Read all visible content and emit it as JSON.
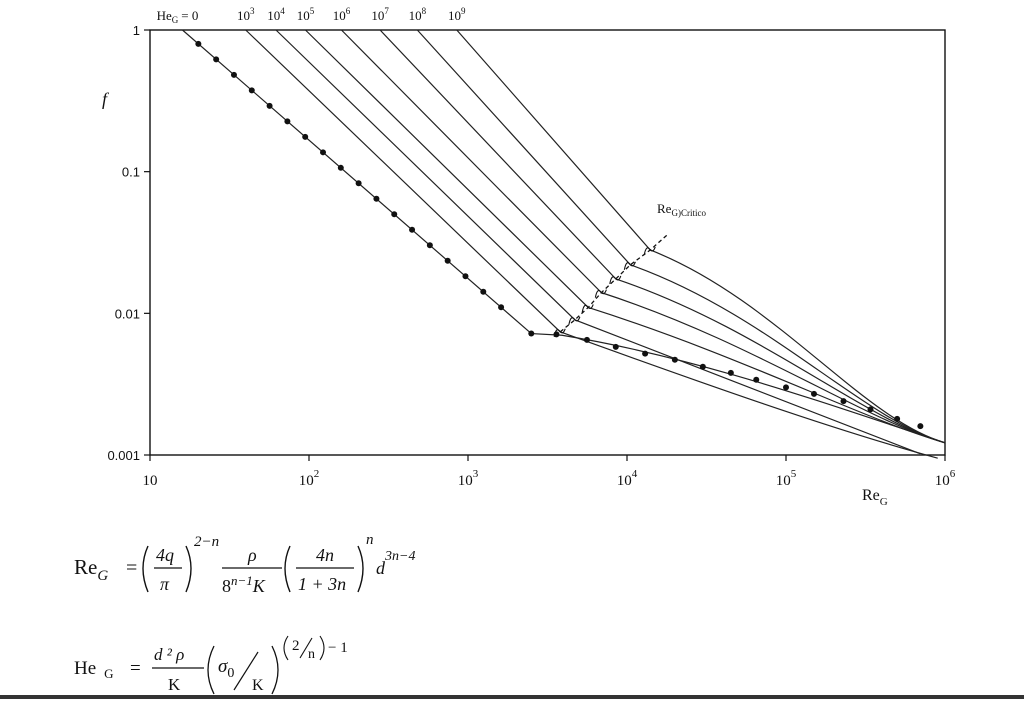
{
  "chart_data": {
    "type": "line",
    "x_scale": "log",
    "y_scale": "log",
    "xlim": [
      10,
      1000000
    ],
    "ylim": [
      0.001,
      1
    ],
    "x_ticks": [
      "10",
      "10",
      "10",
      "10",
      "10",
      "10"
    ],
    "x_tick_exponents": [
      "",
      "2",
      "3",
      "4",
      "5",
      "6"
    ],
    "y_ticks": [
      "1",
      "0.1",
      "0.01",
      "0.001"
    ],
    "xlabel_main": "Re",
    "xlabel_sub": "G",
    "ylabel": "f",
    "he_legend": {
      "first_main": "He",
      "first_sub": "G",
      "first_value": "= 0",
      "labels": [
        {
          "base": "10",
          "exp": "3"
        },
        {
          "base": "10",
          "exp": "4"
        },
        {
          "base": "10",
          "exp": "5"
        },
        {
          "base": "10",
          "exp": "6"
        },
        {
          "base": "10",
          "exp": "7"
        },
        {
          "base": "10",
          "exp": "8"
        },
        {
          "base": "10",
          "exp": "9"
        }
      ]
    },
    "critical_label_main": "Re",
    "critical_label_sub": "G)Critico",
    "series": [
      {
        "He": 0,
        "laminar_start_x": 16,
        "transition_x": 2500,
        "transition_y": 0.0072,
        "marked": true
      },
      {
        "He": 1000,
        "laminar_start_x": 40,
        "transition_x": 3800,
        "transition_y": 0.0074
      },
      {
        "He": 10000,
        "laminar_start_x": 62,
        "transition_x": 4700,
        "transition_y": 0.009
      },
      {
        "He": 100000,
        "laminar_start_x": 95,
        "transition_x": 5700,
        "transition_y": 0.011
      },
      {
        "He": 1000000,
        "laminar_start_x": 160,
        "transition_x": 6900,
        "transition_y": 0.014
      },
      {
        "He": 10000000,
        "laminar_start_x": 280,
        "transition_x": 8500,
        "transition_y": 0.0175
      },
      {
        "He": 100000000,
        "laminar_start_x": 480,
        "transition_x": 10500,
        "transition_y": 0.022
      },
      {
        "He": 1000000000,
        "laminar_start_x": 850,
        "transition_x": 14000,
        "transition_y": 0.028
      }
    ]
  },
  "formulas": {
    "re": {
      "lhs_main": "Re",
      "lhs_sub": "G",
      "eq": "=",
      "frac1_num": "4q",
      "frac1_den": "π",
      "exp1": "2−n",
      "frac2_num": "ρ",
      "frac2_den_base": "8",
      "frac2_den_exp": "n−1",
      "frac2_den_k": "K",
      "frac3_num": "4n",
      "frac3_den": "1 + 3n",
      "exp3": "n",
      "d": "d",
      "d_exp": "3n−4"
    },
    "he": {
      "lhs_main": "He",
      "lhs_sub": "G",
      "eq": "=",
      "frac_num": "d ² ρ",
      "frac_den": "K",
      "sigma": "σ",
      "sigma_sub": "0",
      "over_k": "K",
      "exp_num": "2",
      "exp_den": "n",
      "exp_tail": "− 1"
    }
  }
}
